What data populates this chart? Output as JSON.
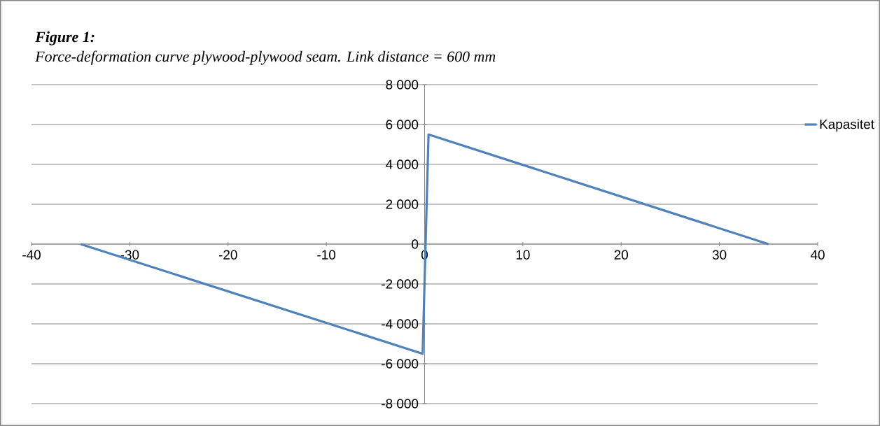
{
  "chart_data": {
    "type": "line",
    "title": "Figure 1:",
    "subtitle": "Force-deformation curve plywood-plywood seam. Link distance = 600 mm",
    "series": [
      {
        "name": "Kapasitet",
        "color": "#4f81bd",
        "x": [
          -35,
          -0.2,
          0.4,
          35
        ],
        "values": [
          0,
          -5500,
          5500,
          0
        ]
      }
    ],
    "xlim": [
      -40,
      40
    ],
    "xticks": [
      -40,
      -30,
      -20,
      -10,
      0,
      10,
      20,
      30,
      40
    ],
    "ylim": [
      -8000,
      8000
    ],
    "yticks": [
      {
        "value": -8000,
        "label": "-8 000"
      },
      {
        "value": -6000,
        "label": "-6 000"
      },
      {
        "value": -4000,
        "label": "-4 000"
      },
      {
        "value": -2000,
        "label": "-2 000"
      },
      0,
      {
        "value": 2000,
        "label": "2 000"
      },
      {
        "value": 4000,
        "label": "4 000"
      },
      {
        "value": 6000,
        "label": "6 000"
      },
      {
        "value": 8000,
        "label": "8 000"
      }
    ],
    "grid": "y",
    "legend": "top right",
    "marker": "none",
    "line_style": "solid"
  }
}
